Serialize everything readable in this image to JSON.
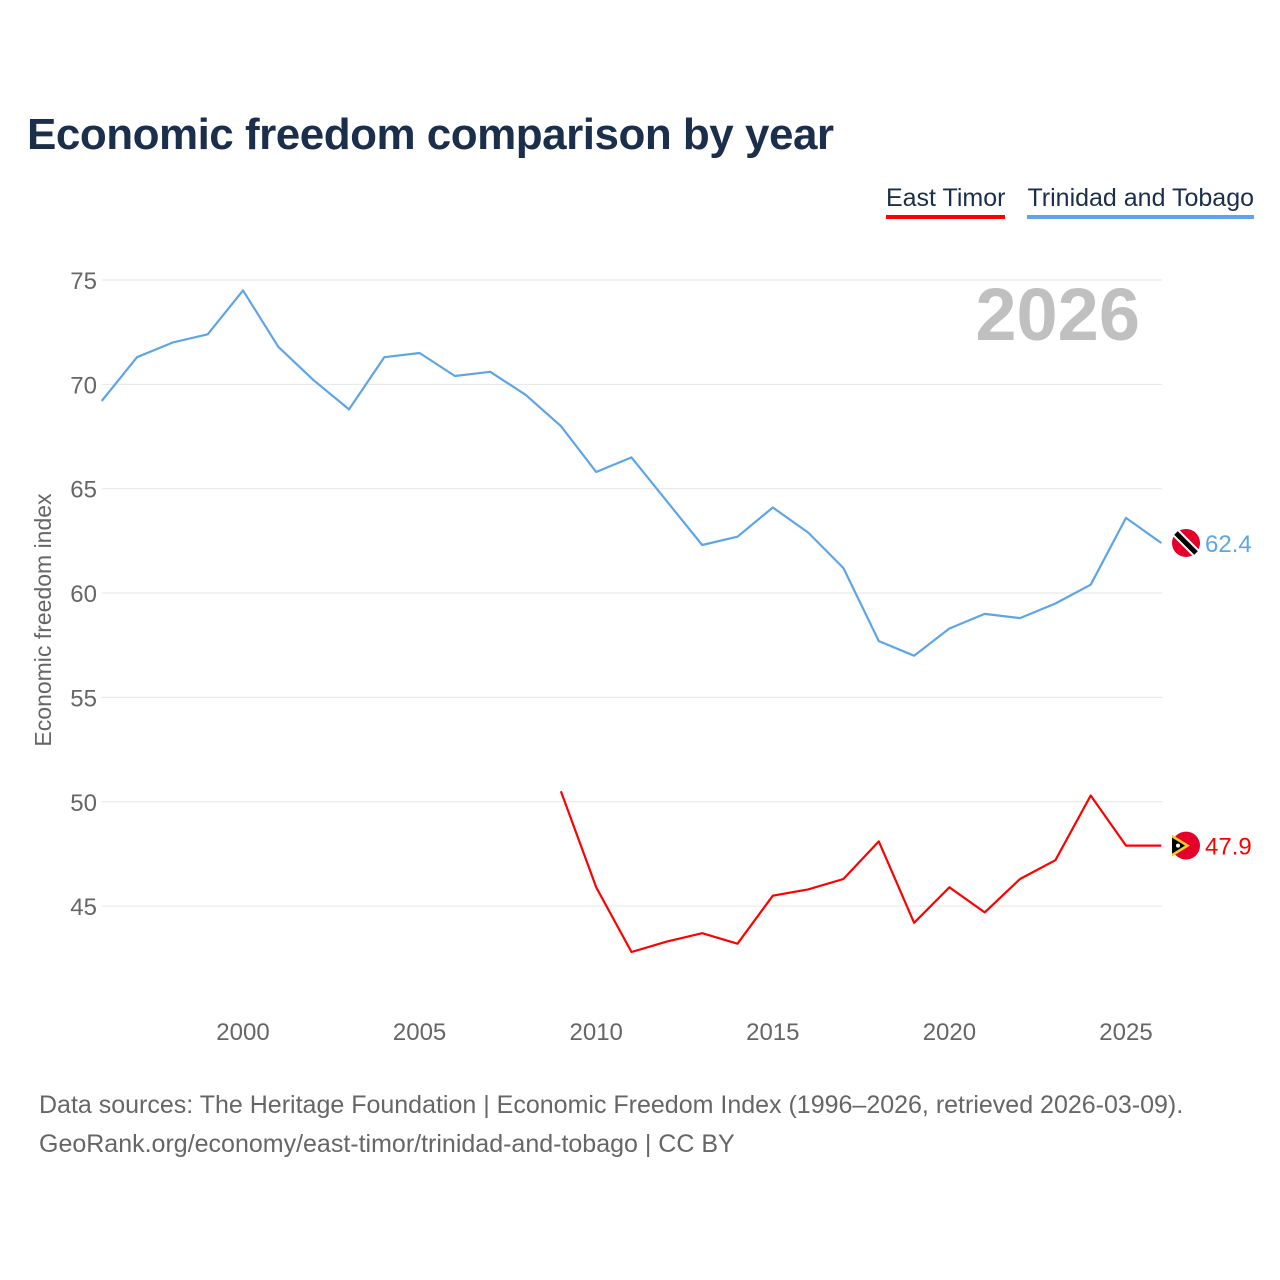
{
  "title": "Economic freedom comparison by year",
  "footer": {
    "line1": "Data sources: The Heritage Foundation | Economic Freedom Index (1996–2026, retrieved 2026-03-09).",
    "line2": "GeoRank.org/economy/east-timor/trinidad-and-tobago | CC BY"
  },
  "chart_data": {
    "type": "line",
    "title": "Economic freedom comparison by year",
    "ylabel": "Economic freedom index",
    "xlabel": "",
    "xlim": [
      1996,
      2026
    ],
    "ylim": [
      40,
      77
    ],
    "xticks": [
      2000,
      2005,
      2010,
      2015,
      2020,
      2025
    ],
    "yticks": [
      45,
      50,
      55,
      60,
      65,
      70,
      75
    ],
    "grid": true,
    "legend_position": "top-right",
    "year_watermark": "2026",
    "series": [
      {
        "name": "East Timor",
        "color": "#ff0000",
        "end_label": "47.9",
        "flag": "east-timor-flag",
        "x": [
          2009,
          2010,
          2011,
          2012,
          2013,
          2014,
          2015,
          2016,
          2017,
          2018,
          2019,
          2020,
          2021,
          2022,
          2023,
          2024,
          2025,
          2026
        ],
        "values": [
          50.5,
          45.9,
          42.8,
          43.3,
          43.7,
          43.2,
          45.5,
          45.8,
          46.3,
          48.1,
          44.2,
          45.9,
          44.7,
          46.3,
          47.2,
          50.3,
          47.9,
          47.9
        ]
      },
      {
        "name": "Trinidad and Tobago",
        "color": "#5ea5e8",
        "end_label": "62.4",
        "flag": "trinidad-flag",
        "x": [
          1996,
          1997,
          1998,
          1999,
          2000,
          2001,
          2002,
          2003,
          2004,
          2005,
          2006,
          2007,
          2008,
          2009,
          2010,
          2011,
          2012,
          2013,
          2014,
          2015,
          2016,
          2017,
          2018,
          2019,
          2020,
          2021,
          2022,
          2023,
          2024,
          2025,
          2026
        ],
        "values": [
          69.2,
          71.3,
          72.0,
          72.4,
          74.5,
          71.8,
          70.2,
          68.8,
          71.3,
          71.5,
          70.4,
          70.6,
          69.5,
          68.0,
          65.8,
          66.5,
          64.4,
          62.3,
          62.7,
          64.1,
          62.9,
          61.2,
          57.7,
          57.0,
          58.3,
          59.0,
          58.8,
          59.5,
          60.4,
          63.6,
          62.4
        ]
      }
    ]
  }
}
